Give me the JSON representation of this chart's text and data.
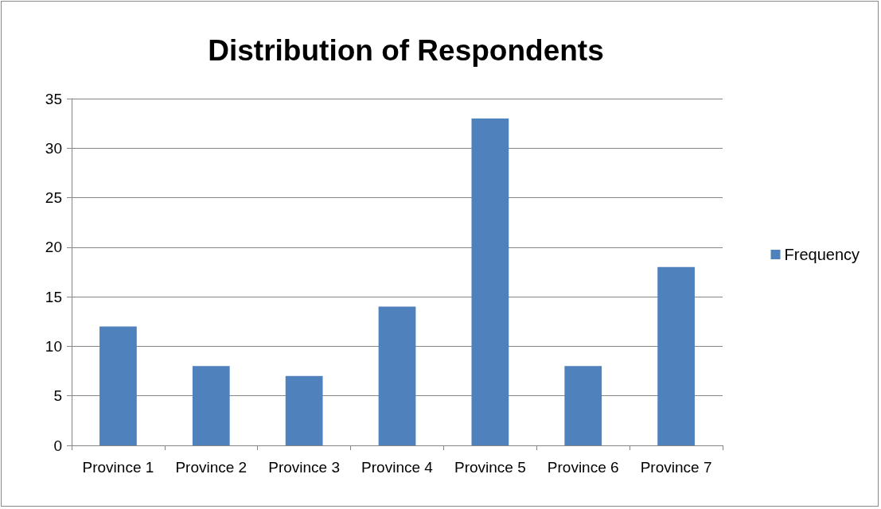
{
  "chart_data": {
    "type": "bar",
    "title": "Distribution of Respondents",
    "categories": [
      "Province 1",
      "Province 2",
      "Province 3",
      "Province 4",
      "Province 5",
      "Province 6",
      "Province 7"
    ],
    "series": [
      {
        "name": "Frequency",
        "color": "#4f81bd",
        "values": [
          12,
          8,
          7,
          14,
          33,
          8,
          18
        ]
      }
    ],
    "ylim": [
      0,
      35
    ],
    "yticks": [
      0,
      5,
      10,
      15,
      20,
      25,
      30,
      35
    ],
    "grid": "y",
    "legend": "right"
  }
}
